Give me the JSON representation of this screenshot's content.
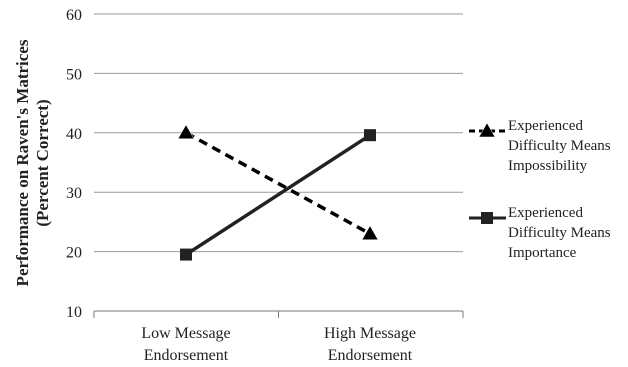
{
  "chart_data": {
    "type": "line",
    "title": "",
    "xlabel": "",
    "ylabel": "Performance on Raven's Matrices (Percent Correct)",
    "ylabel_lines": [
      "Performance on Raven's Matrices",
      "(Percent Correct)"
    ],
    "ylim": [
      10,
      60
    ],
    "yticks": [
      10,
      20,
      30,
      40,
      50,
      60
    ],
    "ytick_labels": [
      "10",
      "20",
      "30",
      "40",
      "50",
      "60"
    ],
    "grid": true,
    "legend_position": "right",
    "categories": [
      {
        "line1": "Low Message",
        "line2": "Endorsement"
      },
      {
        "line1": "High Message",
        "line2": "Endorsement"
      }
    ],
    "series": [
      {
        "name": "Experienced Difficulty Means Impossibility",
        "legend_lines": [
          "Experienced",
          "Difficulty Means",
          "Impossibility"
        ],
        "values": [
          40,
          23
        ],
        "marker": "triangle",
        "line_style": "dashed",
        "color": "#000000"
      },
      {
        "name": "Experienced Difficulty Means Importance",
        "legend_lines": [
          "Experienced",
          "Difficulty Means",
          "Importance"
        ],
        "values": [
          19.5,
          39.6
        ],
        "marker": "square",
        "line_style": "solid",
        "color": "#222222"
      }
    ]
  }
}
